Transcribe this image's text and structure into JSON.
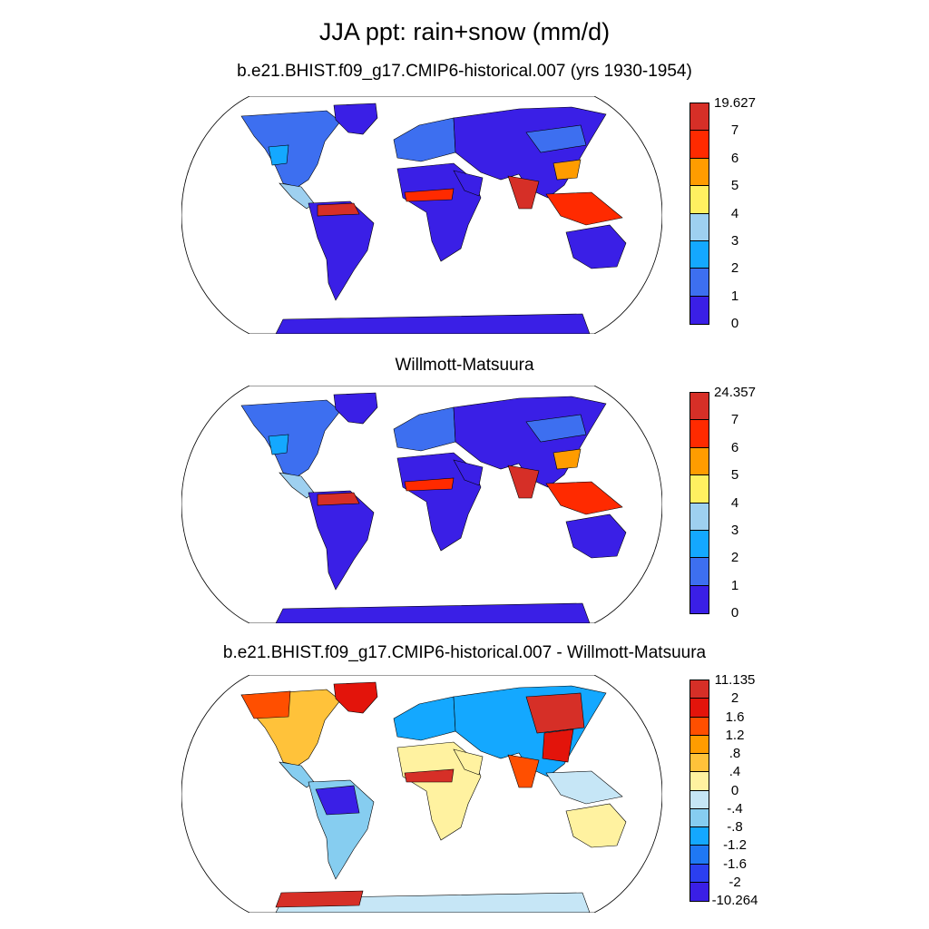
{
  "title": "JJA ppt: rain+snow (mm/d)",
  "panels": [
    {
      "title": "b.e21.BHIST.f09_g17.CMIP6-historical.007 (yrs 1930-1954)",
      "legend_labels": [
        "19.627",
        "7",
        "6",
        "5",
        "4",
        "3",
        "2",
        "1",
        "0"
      ],
      "colors": [
        "#d62f27",
        "#ff2a00",
        "#ff9c00",
        "#fff060",
        "#9ed0f0",
        "#14a8ff",
        "#3d6ff0",
        "#3a1fe6"
      ]
    },
    {
      "title": "Willmott-Matsuura",
      "legend_labels": [
        "24.357",
        "7",
        "6",
        "5",
        "4",
        "3",
        "2",
        "1",
        "0"
      ],
      "colors": [
        "#d62f27",
        "#ff2a00",
        "#ff9c00",
        "#fff060",
        "#9ed0f0",
        "#14a8ff",
        "#3d6ff0",
        "#3a1fe6"
      ]
    },
    {
      "title": "b.e21.BHIST.f09_g17.CMIP6-historical.007 - Willmott-Matsuura",
      "legend_labels": [
        "11.135",
        "2",
        "1.6",
        "1.2",
        ".8",
        ".4",
        "0",
        "-.4",
        "-.8",
        "-1.2",
        "-1.6",
        "-2",
        "-10.264"
      ],
      "colors": [
        "#d62f27",
        "#e3140b",
        "#ff4f00",
        "#ff9c00",
        "#ffc23a",
        "#fff2a0",
        "#c6e6f6",
        "#86cdf0",
        "#14a8ff",
        "#1f78f4",
        "#2b3ff0",
        "#3a1fe6"
      ]
    }
  ]
}
